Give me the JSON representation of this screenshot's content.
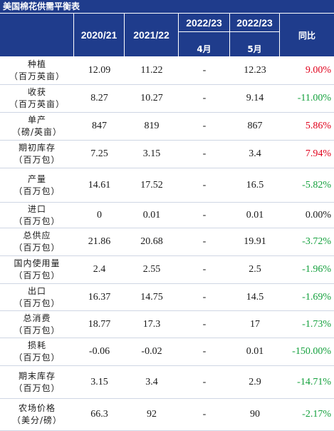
{
  "title": "美国棉花供需平衡表",
  "header": {
    "col_2020": "2020/21",
    "col_2021": "2021/22",
    "col_2223a": "2022/23",
    "col_2223a_sub": "4月",
    "col_2223b": "2022/23",
    "col_2223b_sub": "5月",
    "col_yoy": "同比"
  },
  "rows": [
    {
      "label1": "种植",
      "label2": "（百万英亩）",
      "v2020": "12.09",
      "v2021": "11.22",
      "v_apr": "-",
      "v_may": "12.23",
      "yoy": "9.00%",
      "sign": "pos"
    },
    {
      "label1": "收获",
      "label2": "（百万英亩）",
      "v2020": "8.27",
      "v2021": "10.27",
      "v_apr": "-",
      "v_may": "9.14",
      "yoy": "-11.00%",
      "sign": "neg"
    },
    {
      "label1": "单产",
      "label2": "（磅/英亩）",
      "v2020": "847",
      "v2021": "819",
      "v_apr": "-",
      "v_may": "867",
      "yoy": "5.86%",
      "sign": "pos"
    },
    {
      "label1": "期初库存",
      "label2": "（百万包）",
      "v2020": "7.25",
      "v2021": "3.15",
      "v_apr": "-",
      "v_may": "3.4",
      "yoy": "7.94%",
      "sign": "pos"
    },
    {
      "label1": "产量",
      "label2": "（百万包）",
      "v2020": "14.61",
      "v2021": "17.52",
      "v_apr": "-",
      "v_may": "16.5",
      "yoy": "-5.82%",
      "sign": "neg"
    },
    {
      "label1": "进口",
      "label2": "（百万包）",
      "v2020": "0",
      "v2021": "0.01",
      "v_apr": "-",
      "v_may": "0.01",
      "yoy": "0.00%",
      "sign": "zero"
    },
    {
      "label1": "总供应",
      "label2": "（百万包）",
      "v2020": "21.86",
      "v2021": "20.68",
      "v_apr": "-",
      "v_may": "19.91",
      "yoy": "-3.72%",
      "sign": "neg"
    },
    {
      "label1": "国内使用量",
      "label2": "（百万包）",
      "v2020": "2.4",
      "v2021": "2.55",
      "v_apr": "-",
      "v_may": "2.5",
      "yoy": "-1.96%",
      "sign": "neg"
    },
    {
      "label1": "出口",
      "label2": "（百万包）",
      "v2020": "16.37",
      "v2021": "14.75",
      "v_apr": "-",
      "v_may": "14.5",
      "yoy": "-1.69%",
      "sign": "neg"
    },
    {
      "label1": "总消费",
      "label2": "（百万包）",
      "v2020": "18.77",
      "v2021": "17.3",
      "v_apr": "-",
      "v_may": "17",
      "yoy": "-1.73%",
      "sign": "neg"
    },
    {
      "label1": "损耗",
      "label2": "（百万包）",
      "v2020": "-0.06",
      "v2021": "-0.02",
      "v_apr": "-",
      "v_may": "0.01",
      "yoy": "-150.00%",
      "sign": "neg"
    },
    {
      "label1": "期末库存",
      "label2": "（百万包）",
      "v2020": "3.15",
      "v2021": "3.4",
      "v_apr": "-",
      "v_may": "2.9",
      "yoy": "-14.71%",
      "sign": "neg"
    },
    {
      "label1": "农场价格",
      "label2": "（美分/磅）",
      "v2020": "66.3",
      "v2021": "92",
      "v_apr": "-",
      "v_may": "90",
      "yoy": "-2.17%",
      "sign": "neg"
    }
  ],
  "colors": {
    "header_bg": "#1f3c8c",
    "positive": "#e0001b",
    "negative": "#13a03c"
  }
}
